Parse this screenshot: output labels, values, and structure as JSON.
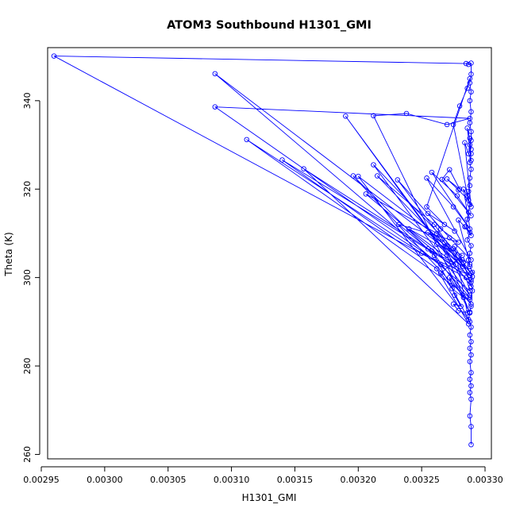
{
  "chart_data": {
    "type": "line",
    "title": "ATOM3 Southbound H1301_GMI",
    "xlabel": "H1301_GMI",
    "ylabel": "Theta (K)",
    "xlim": [
      0.002955,
      0.003305
    ],
    "ylim": [
      259,
      352
    ],
    "x_ticks": [
      0.00295,
      0.003,
      0.00305,
      0.0031,
      0.00315,
      0.0032,
      0.00325,
      0.0033
    ],
    "x_tick_labels": [
      "0.00295",
      "0.00300",
      "0.00305",
      "0.00310",
      "0.00315",
      "0.00320",
      "0.00325",
      "0.00330"
    ],
    "y_ticks": [
      260,
      280,
      300,
      320,
      340
    ],
    "y_tick_labels": [
      "260",
      "280",
      "300",
      "320",
      "340"
    ],
    "series_color": "#0000ff",
    "marker": "open-circle",
    "series": [
      {
        "name": "H1301_GMI",
        "points": [
          [
            0.003289,
            262.2
          ],
          [
            0.003289,
            266.3
          ],
          [
            0.003288,
            268.7
          ],
          [
            0.003289,
            272.5
          ],
          [
            0.003288,
            274.0
          ],
          [
            0.003289,
            275.5
          ],
          [
            0.003288,
            277.0
          ],
          [
            0.003289,
            278.5
          ],
          [
            0.003288,
            281.0
          ],
          [
            0.003289,
            282.5
          ],
          [
            0.003288,
            284.0
          ],
          [
            0.003289,
            285.5
          ],
          [
            0.003288,
            287.0
          ],
          [
            0.003289,
            288.8
          ],
          [
            0.003287,
            290.5
          ],
          [
            0.003288,
            292.2
          ],
          [
            0.003289,
            293.5
          ],
          [
            0.003288,
            295.0
          ],
          [
            0.00329,
            297.0
          ],
          [
            0.003289,
            299.5
          ],
          [
            0.00329,
            301.2
          ],
          [
            0.003288,
            302.5
          ],
          [
            0.003287,
            304.0
          ],
          [
            0.003288,
            305.5
          ],
          [
            0.003289,
            307.2
          ],
          [
            0.003286,
            308.5
          ],
          [
            0.003288,
            310.2
          ],
          [
            0.003285,
            311.5
          ],
          [
            0.003286,
            313.2
          ],
          [
            0.003287,
            314.8
          ],
          [
            0.003288,
            316.5
          ],
          [
            0.003286,
            318.0
          ],
          [
            0.003287,
            319.5
          ],
          [
            0.003288,
            320.8
          ],
          [
            0.003288,
            322.5
          ],
          [
            0.003289,
            324.5
          ],
          [
            0.003288,
            326.0
          ],
          [
            0.003289,
            328.0
          ],
          [
            0.003288,
            330.0
          ],
          [
            0.003289,
            331.0
          ],
          [
            0.003289,
            333.0
          ],
          [
            0.003288,
            335.0
          ],
          [
            0.003289,
            337.5
          ],
          [
            0.003288,
            340.0
          ],
          [
            0.003289,
            342.0
          ],
          [
            0.003288,
            344.0
          ],
          [
            0.003289,
            346.0
          ],
          [
            0.003289,
            348.5
          ],
          [
            0.003287,
            348.2
          ],
          [
            0.003285,
            348.4
          ],
          [
            0.00296,
            350.1
          ],
          [
            0.003285,
            300.0
          ],
          [
            0.003288,
            297.0
          ],
          [
            0.003087,
            346.1
          ],
          [
            0.003283,
            303.5
          ],
          [
            0.003289,
            298.0
          ],
          [
            0.00319,
            336.5
          ],
          [
            0.00327,
            305.0
          ],
          [
            0.003288,
            292.0
          ],
          [
            0.003212,
            336.6
          ],
          [
            0.003238,
            337.1
          ],
          [
            0.00327,
            334.6
          ],
          [
            0.003288,
            336.0
          ],
          [
            0.003087,
            338.6
          ],
          [
            0.003265,
            303.0
          ],
          [
            0.003288,
            295.5
          ],
          [
            0.003112,
            331.2
          ],
          [
            0.00325,
            305.5
          ],
          [
            0.00329,
            300.2
          ],
          [
            0.00314,
            326.6
          ],
          [
            0.003262,
            302.0
          ],
          [
            0.003287,
            289.5
          ],
          [
            0.003157,
            324.6
          ],
          [
            0.003258,
            306.0
          ],
          [
            0.003289,
            294.0
          ],
          [
            0.003196,
            323.0
          ],
          [
            0.00326,
            305.0
          ],
          [
            0.003288,
            290.0
          ],
          [
            0.0032,
            322.9
          ],
          [
            0.003268,
            308.0
          ],
          [
            0.003289,
            299.0
          ],
          [
            0.003206,
            318.9
          ],
          [
            0.003262,
            310.0
          ],
          [
            0.003288,
            296.0
          ],
          [
            0.003212,
            325.5
          ],
          [
            0.003275,
            306.5
          ],
          [
            0.003289,
            301.0
          ],
          [
            0.003215,
            323.0
          ],
          [
            0.00326,
            312.0
          ],
          [
            0.003288,
            300.5
          ],
          [
            0.003231,
            322.1
          ],
          [
            0.003272,
            309.0
          ],
          [
            0.003289,
            304.0
          ],
          [
            0.003254,
            322.5
          ],
          [
            0.003275,
            316.0
          ],
          [
            0.003288,
            311.0
          ],
          [
            0.003258,
            323.8
          ],
          [
            0.003278,
            318.5
          ],
          [
            0.003289,
            314.0
          ],
          [
            0.003266,
            322.2
          ],
          [
            0.003272,
            324.4
          ],
          [
            0.00328,
            320.0
          ],
          [
            0.00327,
            322.3
          ],
          [
            0.003279,
            319.8
          ],
          [
            0.003287,
            317.5
          ],
          [
            0.003275,
            334.6
          ],
          [
            0.00328,
            338.8
          ],
          [
            0.003286,
            342.8
          ],
          [
            0.003288,
            345.0
          ],
          [
            0.003254,
            316.0
          ],
          [
            0.003268,
            312.0
          ],
          [
            0.003276,
            310.5
          ],
          [
            0.003255,
            314.5
          ],
          [
            0.003265,
            311.0
          ],
          [
            0.003279,
            308.0
          ],
          [
            0.003232,
            312.0
          ],
          [
            0.003255,
            306.5
          ],
          [
            0.003277,
            303.0
          ],
          [
            0.00324,
            311.0
          ],
          [
            0.003262,
            307.5
          ],
          [
            0.003282,
            302.5
          ],
          [
            0.003255,
            310.2
          ],
          [
            0.00327,
            307.0
          ],
          [
            0.003282,
            305.0
          ],
          [
            0.003265,
            301.0
          ],
          [
            0.003274,
            297.5
          ],
          [
            0.003283,
            295.5
          ],
          [
            0.003272,
            300.0
          ],
          [
            0.003276,
            296.0
          ],
          [
            0.003281,
            293.5
          ],
          [
            0.003275,
            294.0
          ],
          [
            0.003279,
            292.5
          ],
          [
            0.003286,
            292.0
          ],
          [
            0.003276,
            307.0
          ],
          [
            0.003282,
            304.0
          ],
          [
            0.003288,
            303.0
          ],
          [
            0.003279,
            313.0
          ],
          [
            0.003284,
            311.5
          ],
          [
            0.003289,
            309.5
          ],
          [
            0.003283,
            320.0
          ],
          [
            0.003286,
            318.5
          ],
          [
            0.003289,
            316.0
          ],
          [
            0.003284,
            330.5
          ],
          [
            0.003287,
            328.0
          ],
          [
            0.003289,
            326.5
          ],
          [
            0.003286,
            333.8
          ],
          [
            0.003288,
            331.5
          ],
          [
            0.003289,
            329.0
          ]
        ]
      }
    ]
  }
}
